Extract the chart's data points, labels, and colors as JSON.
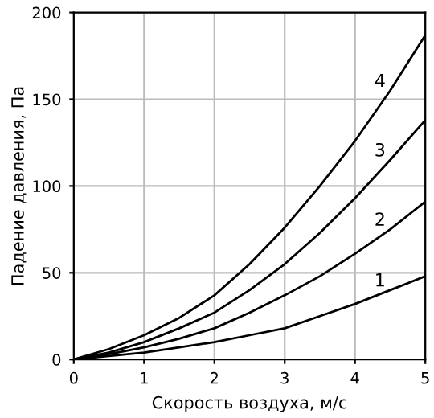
{
  "chart_data": {
    "type": "line",
    "xlabel": "Скорость воздуха, м/с",
    "ylabel": "Падение давления, Па",
    "x": [
      0,
      0.5,
      1,
      1.5,
      2,
      2.5,
      3,
      3.5,
      4,
      4.5,
      5
    ],
    "series": [
      {
        "name": "1",
        "color": "#000000",
        "values": [
          0,
          2,
          4,
          7,
          10,
          14,
          18,
          25,
          32,
          40,
          48
        ]
      },
      {
        "name": "2",
        "color": "#000000",
        "values": [
          0,
          3,
          7,
          12,
          18,
          27,
          37,
          48,
          61,
          75,
          91
        ]
      },
      {
        "name": "3",
        "color": "#000000",
        "values": [
          0,
          4,
          10,
          18,
          27,
          40,
          55,
          73,
          93,
          115,
          138
        ]
      },
      {
        "name": "4",
        "color": "#000000",
        "values": [
          0,
          6,
          14,
          24,
          37,
          55,
          76,
          100,
          126,
          155,
          187
        ]
      }
    ],
    "xlim": [
      0,
      5
    ],
    "ylim": [
      0,
      200
    ],
    "xticks": [
      0,
      1,
      2,
      3,
      4,
      5
    ],
    "yticks": [
      0,
      50,
      100,
      150,
      200
    ],
    "grid": true,
    "marker": "none",
    "line_style": "solid",
    "legend": false
  }
}
